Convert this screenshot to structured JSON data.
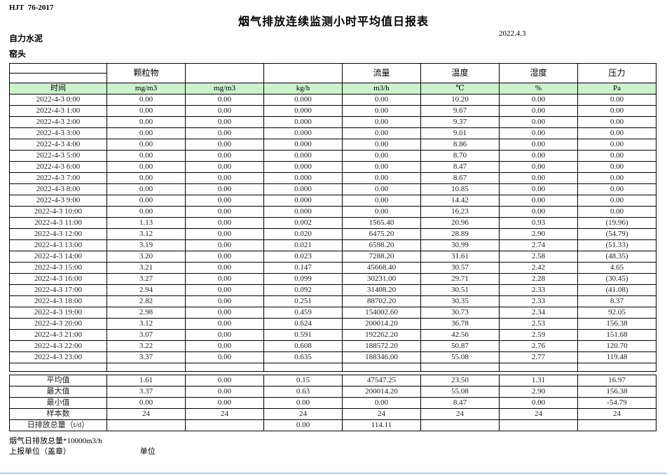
{
  "page": {
    "doc_code": "HJT  76-2017",
    "title": "烟气排放连续监测小时平均值日报表",
    "company": "自力水泥",
    "station": "窑头",
    "date": "2022.4.3"
  },
  "colors": {
    "header_fill": "#ccf2cc",
    "alarm_red": "#e60000",
    "bottom_line": "#aacdf0"
  },
  "table": {
    "group_headers": [
      "",
      "颗粒物",
      "",
      "",
      "流量",
      "温度",
      "湿度",
      "压力"
    ],
    "time_label": "时间",
    "units": [
      "mg/m3",
      "mg/m3",
      "kg/h",
      "m3/h",
      "℃",
      "%",
      "Pa"
    ],
    "rows": [
      {
        "time": "2022-4-3 0:00",
        "cells": [
          "0.00",
          "0.00",
          "0.000",
          "0.00",
          "10.20",
          "0.00",
          "0.00"
        ]
      },
      {
        "time": "2022-4-3 1:00",
        "cells": [
          "0.00",
          "0.00",
          "0.000",
          "0.00",
          "9.67",
          "0.00",
          "0.00"
        ]
      },
      {
        "time": "2022-4-3 2:00",
        "cells": [
          "0.00",
          "0.00",
          "0.000",
          "0.00",
          "9.37",
          "0.00",
          "0.00"
        ]
      },
      {
        "time": "2022-4-3 3:00",
        "cells": [
          "0.00",
          "0.00",
          "0.000",
          "0.00",
          "9.01",
          "0.00",
          "0.00"
        ]
      },
      {
        "time": "2022-4-3 4:00",
        "cells": [
          "0.00",
          "0.00",
          "0.000",
          "0.00",
          "8.86",
          "0.00",
          "0.00"
        ]
      },
      {
        "time": "2022-4-3 5:00",
        "cells": [
          "0.00",
          "0.00",
          "0.000",
          "0.00",
          "8.70",
          "0.00",
          "0.00"
        ]
      },
      {
        "time": "2022-4-3 6:00",
        "cells": [
          "0.00",
          "0.00",
          "0.000",
          "0.00",
          "8.47",
          "0.00",
          "0.00"
        ]
      },
      {
        "time": "2022-4-3 7:00",
        "cells": [
          "0.00",
          "0.00",
          "0.000",
          "0.00",
          "8.67",
          "0.00",
          "0.00"
        ]
      },
      {
        "time": "2022-4-3 8:00",
        "cells": [
          "0.00",
          "0.00",
          "0.000",
          "0.00",
          "10.85",
          "0.00",
          "0.00"
        ]
      },
      {
        "time": "2022-4-3 9:00",
        "cells": [
          "0.00",
          "0.00",
          "0.000",
          "0.00",
          "14.42",
          "0.00",
          "0.00"
        ]
      },
      {
        "time": "2022-4-3 10:00",
        "cells": [
          "0.00",
          "0.00",
          "0.000",
          "0.00",
          "16.23",
          "0.00",
          "0.00"
        ]
      },
      {
        "time": "2022-4-3 11:00",
        "cells": [
          "1.13",
          "0.00",
          "0.002",
          "1565.40",
          "20.96",
          "0.93",
          "(19.96)"
        ]
      },
      {
        "time": "2022-4-3 12:00",
        "cells": [
          "3.12",
          "0.00",
          "0.020",
          "6475.20",
          "28.89",
          "2.90",
          "(54.79)"
        ]
      },
      {
        "time": "2022-4-3 13:00",
        "cells": [
          "3.19",
          "0.00",
          "0.021",
          "6598.20",
          "30.99",
          "2.74",
          "(51.33)"
        ]
      },
      {
        "time": "2022-4-3 14:00",
        "cells": [
          "3.20",
          "0.00",
          "0.023",
          "7288.20",
          "31.61",
          "2.58",
          "(48.35)"
        ]
      },
      {
        "time": "2022-4-3 15:00",
        "cells": [
          "3.21",
          "0.00",
          "0.147",
          "45668.40",
          "30.57",
          "2.42",
          "4.65"
        ]
      },
      {
        "time": "2022-4-3 16:00",
        "cells": [
          "3.27",
          "0.00",
          "0.099",
          "30231.00",
          "29.71",
          "2.28",
          "(30.45)"
        ]
      },
      {
        "time": "2022-4-3 17:00",
        "cells": [
          "2.94",
          "0.00",
          "0.092",
          "31408.20",
          "30.51",
          "2.33",
          "(41.08)"
        ]
      },
      {
        "time": "2022-4-3 18:00",
        "cells": [
          "2.82",
          "0.00",
          "0.251",
          "88702.20",
          "30.35",
          "2.33",
          "8.37"
        ]
      },
      {
        "time": "2022-4-3 19:00",
        "cells": [
          "2.98",
          "0.00",
          "0.459",
          "154002.60",
          "30.73",
          "2.34",
          "92.05"
        ]
      },
      {
        "time": "2022-4-3 20:00",
        "cells": [
          "3.12",
          "0.00",
          "0.624",
          "200014.20",
          "36.78",
          "2.53",
          "156.38"
        ]
      },
      {
        "time": "2022-4-3 21:00",
        "cells": [
          "3.07",
          "0.00",
          "0.591",
          "192262.20",
          "42.56",
          "2.59",
          "151.68"
        ]
      },
      {
        "time": "2022-4-3 22:00",
        "cells": [
          "3.22",
          "0.00",
          "0.608",
          "188572.20",
          "50.87",
          "2.76",
          "120.70"
        ]
      },
      {
        "time": "2022-4-3 23:00",
        "cells": [
          "3.37",
          "0.00",
          "0.635",
          "188346.00",
          "55.08",
          "2.77",
          "119.48"
        ]
      }
    ],
    "summary": [
      {
        "label": "平均值",
        "cells": [
          "1.61",
          "0.00",
          "0.15",
          "47547.25",
          "23.50",
          "1.31",
          "16.97"
        ]
      },
      {
        "label": "最大值",
        "cells": [
          "3.37",
          "0.00",
          "0.63",
          "200014.20",
          "55.08",
          "2.90",
          "156.38"
        ]
      },
      {
        "label": "最小值",
        "cells": [
          "0.00",
          "0.00",
          "0.00",
          "0.00",
          "8.47",
          "0.00",
          "-54.79"
        ]
      },
      {
        "label": "样本数",
        "cells": [
          "24",
          "24",
          "24",
          "24",
          "24",
          "24",
          "24"
        ]
      },
      {
        "label": "日排放总量（t/d）",
        "cells": [
          "",
          "",
          "0.00",
          "114.11",
          "",
          "",
          ""
        ]
      }
    ]
  },
  "footer": {
    "note": "烟气日排放总量*10000m3/h",
    "report_unit_label": "上报单位（盖章）",
    "unit_label": "单位"
  }
}
